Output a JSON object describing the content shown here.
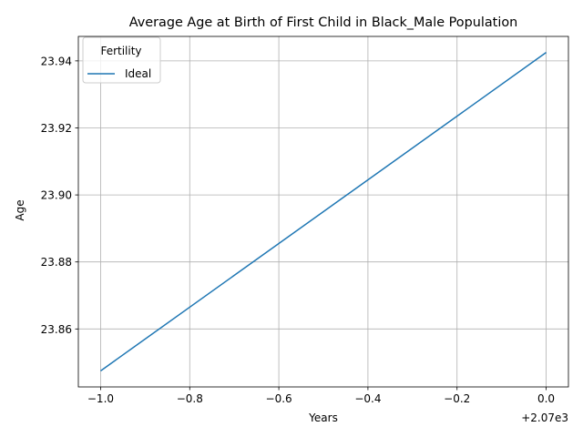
{
  "chart_data": {
    "type": "line",
    "title": "Average Age at Birth of First Child in Black_Male Population",
    "xlabel": "Years",
    "ylabel": "Age",
    "x_offset_label": "+2.07e3",
    "xlim": [
      -1.05,
      0.05
    ],
    "ylim": [
      23.8427,
      23.9473
    ],
    "x_ticks": [
      -1.0,
      -0.8,
      -0.6,
      -0.4,
      -0.2,
      0.0
    ],
    "x_tick_labels": [
      "−1.0",
      "−0.8",
      "−0.6",
      "−0.4",
      "−0.2",
      "0.0"
    ],
    "y_ticks": [
      23.86,
      23.88,
      23.9,
      23.92,
      23.94
    ],
    "y_tick_labels": [
      "23.86",
      "23.88",
      "23.90",
      "23.92",
      "23.94"
    ],
    "grid": true,
    "legend": {
      "title": "Fertility",
      "placement": "top-left"
    },
    "series": [
      {
        "name": "Ideal",
        "color": "#1f77b4",
        "x": [
          -1.0,
          0.0
        ],
        "y": [
          23.8475,
          23.9425
        ]
      }
    ]
  }
}
